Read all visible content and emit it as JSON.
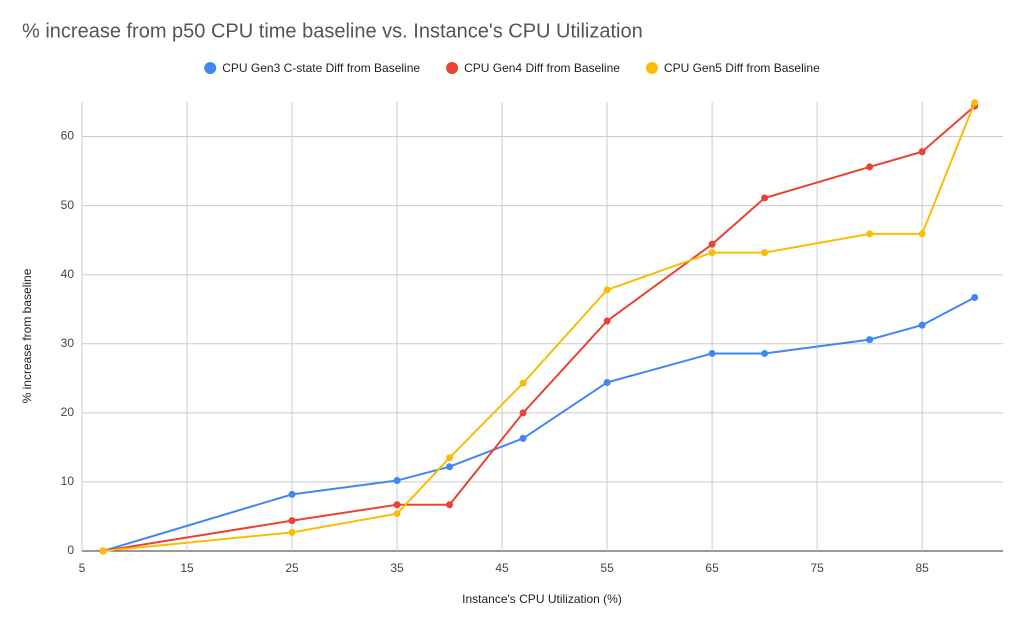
{
  "chart_data": {
    "type": "line",
    "title": "%  increase from p50 CPU time baseline vs. Instance's CPU Utilization",
    "x_label": "Instance's CPU Utilization (%)",
    "y_label": "% increase from baseline",
    "x": [
      7,
      25,
      35,
      40,
      47,
      55,
      65,
      70,
      80,
      85,
      90
    ],
    "series": [
      {
        "name": "CPU Gen3 C-state Diff from Baseline",
        "color": "#4285f4",
        "values": [
          0,
          8.2,
          10.2,
          12.2,
          16.3,
          24.4,
          28.6,
          28.6,
          30.6,
          32.7,
          36.7
        ]
      },
      {
        "name": "CPU Gen4 Diff from Baseline",
        "color": "#ea4335",
        "values": [
          0,
          4.4,
          6.7,
          6.7,
          20.0,
          33.3,
          44.4,
          51.1,
          55.6,
          57.8,
          64.4
        ]
      },
      {
        "name": "CPU Gen5 Diff from Baseline",
        "color": "#fbbc04",
        "values": [
          0,
          2.7,
          5.4,
          13.5,
          24.3,
          37.8,
          43.2,
          43.2,
          45.9,
          45.9,
          64.9
        ]
      }
    ],
    "xlim": [
      5,
      92.7
    ],
    "xticks": [
      5,
      15,
      25,
      35,
      45,
      55,
      65,
      75,
      85
    ],
    "ylim": [
      0,
      65
    ],
    "yticks": [
      0,
      10,
      20,
      30,
      40,
      50,
      60
    ],
    "grid": true,
    "legend": "top"
  }
}
